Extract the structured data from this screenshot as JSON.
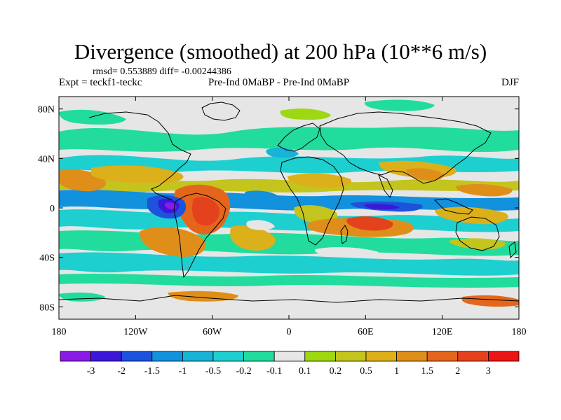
{
  "title": "Divergence (smoothed) at 200 hPa (10**6 m/s)",
  "stats": "rmsd= 0.553889 diff= -0.00244386",
  "expt": "Expt = teckf1-teckc",
  "comparison": "Pre-Ind 0MaBP - Pre-Ind 0MaBP",
  "season": "DJF",
  "y_ticks": [
    {
      "label": "80N",
      "lat": 80
    },
    {
      "label": "40N",
      "lat": 40
    },
    {
      "label": "0",
      "lat": 0
    },
    {
      "label": "40S",
      "lat": -40
    },
    {
      "label": "80S",
      "lat": -80
    }
  ],
  "x_ticks": [
    {
      "label": "180",
      "lon": -180
    },
    {
      "label": "120W",
      "lon": -120
    },
    {
      "label": "60W",
      "lon": -60
    },
    {
      "label": "0",
      "lon": 0
    },
    {
      "label": "60E",
      "lon": 60
    },
    {
      "label": "120E",
      "lon": 120
    },
    {
      "label": "180",
      "lon": 180
    }
  ],
  "colorbar": {
    "colors": [
      "#8a1ae6",
      "#3b18d8",
      "#1c52dc",
      "#1291dc",
      "#18b3d6",
      "#1ecfd0",
      "#22dc9e",
      "#e6e6e6",
      "#9ed812",
      "#c4c41e",
      "#dcb01a",
      "#e08e1a",
      "#e4661c",
      "#e4421c",
      "#ec1414"
    ],
    "labels": [
      "-3",
      "-2",
      "-1.5",
      "-1",
      "-0.5",
      "-0.2",
      "-0.1",
      "0.1",
      "0.2",
      "0.5",
      "1",
      "1.5",
      "2",
      "3"
    ]
  }
}
